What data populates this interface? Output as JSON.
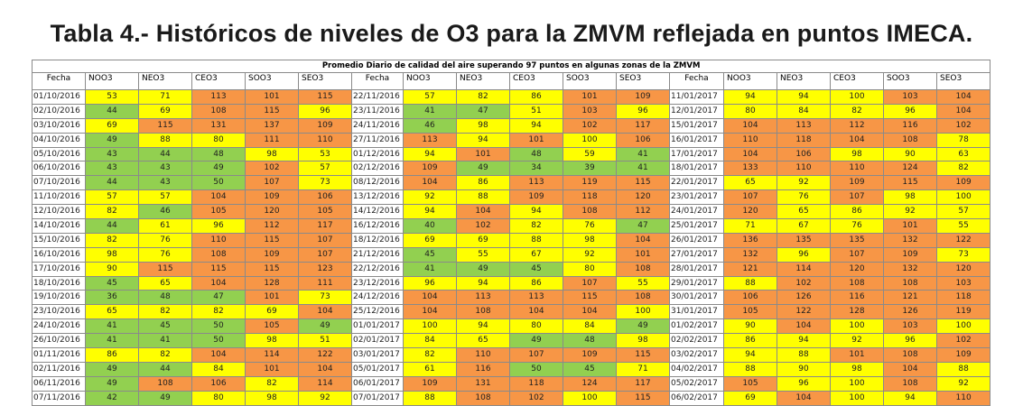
{
  "title": "Tabla 4.- Históricos de niveles de O3 para la ZMVM reflejada en puntos IMECA.",
  "table": {
    "caption": "Promedio Diario de calidad del aire superando 97 puntos en algunas zonas de la ZMVM",
    "headers": [
      "Fecha",
      "NOO3",
      "NEO3",
      "CEO3",
      "SOO3",
      "SEO3",
      "Fecha",
      "NOO3",
      "NEO3",
      "CEO3",
      "SOO3",
      "SEO3",
      "Fecha",
      "NOO3",
      "NEO3",
      "CEO3",
      "SOO3",
      "SEO3"
    ],
    "colors": {
      "green": "#92d050",
      "yellow": "#ffff00",
      "orange": "#f79646"
    },
    "rows": [
      [
        "01/10/2016",
        "53",
        "71",
        "113",
        "101",
        "115",
        "22/11/2016",
        "57",
        "82",
        "86",
        "101",
        "109",
        "11/01/2017",
        "94",
        "94",
        "100",
        "103",
        "104"
      ],
      [
        "02/10/2016",
        "44",
        "69",
        "108",
        "115",
        "96",
        "23/11/2016",
        "41",
        "47",
        "51",
        "103",
        "96",
        "12/01/2017",
        "80",
        "84",
        "82",
        "96",
        "104"
      ],
      [
        "03/10/2016",
        "69",
        "115",
        "131",
        "137",
        "109",
        "24/11/2016",
        "46",
        "98",
        "94",
        "102",
        "117",
        "15/01/2017",
        "104",
        "113",
        "112",
        "116",
        "102"
      ],
      [
        "04/10/2016",
        "49",
        "88",
        "80",
        "111",
        "110",
        "27/11/2016",
        "113",
        "94",
        "101",
        "100",
        "106",
        "16/01/2017",
        "110",
        "118",
        "104",
        "108",
        "78"
      ],
      [
        "05/10/2016",
        "43",
        "44",
        "48",
        "98",
        "53",
        "01/12/2016",
        "94",
        "101",
        "48",
        "59",
        "41",
        "17/01/2017",
        "104",
        "106",
        "98",
        "90",
        "63"
      ],
      [
        "06/10/2016",
        "43",
        "43",
        "49",
        "102",
        "57",
        "02/12/2016",
        "109",
        "49",
        "34",
        "39",
        "41",
        "18/01/2017",
        "133",
        "110",
        "110",
        "124",
        "82"
      ],
      [
        "07/10/2016",
        "44",
        "43",
        "50",
        "107",
        "73",
        "08/12/2016",
        "104",
        "86",
        "113",
        "119",
        "115",
        "22/01/2017",
        "65",
        "92",
        "109",
        "115",
        "109"
      ],
      [
        "11/10/2016",
        "57",
        "57",
        "104",
        "109",
        "106",
        "13/12/2016",
        "92",
        "88",
        "109",
        "118",
        "120",
        "23/01/2017",
        "107",
        "76",
        "107",
        "98",
        "100"
      ],
      [
        "12/10/2016",
        "82",
        "46",
        "105",
        "120",
        "105",
        "14/12/2016",
        "94",
        "104",
        "94",
        "108",
        "112",
        "24/01/2017",
        "120",
        "65",
        "86",
        "92",
        "57"
      ],
      [
        "14/10/2016",
        "44",
        "61",
        "96",
        "112",
        "117",
        "16/12/2016",
        "40",
        "102",
        "82",
        "76",
        "47",
        "25/01/2017",
        "71",
        "67",
        "76",
        "101",
        "55"
      ],
      [
        "15/10/2016",
        "82",
        "76",
        "110",
        "115",
        "107",
        "18/12/2016",
        "69",
        "69",
        "88",
        "98",
        "104",
        "26/01/2017",
        "136",
        "135",
        "135",
        "132",
        "122"
      ],
      [
        "16/10/2016",
        "98",
        "76",
        "108",
        "109",
        "107",
        "21/12/2016",
        "45",
        "55",
        "67",
        "92",
        "101",
        "27/01/2017",
        "132",
        "96",
        "107",
        "109",
        "73"
      ],
      [
        "17/10/2016",
        "90",
        "115",
        "115",
        "115",
        "123",
        "22/12/2016",
        "41",
        "49",
        "45",
        "80",
        "108",
        "28/01/2017",
        "121",
        "114",
        "120",
        "132",
        "120"
      ],
      [
        "18/10/2016",
        "45",
        "65",
        "104",
        "128",
        "111",
        "23/12/2016",
        "96",
        "94",
        "86",
        "107",
        "55",
        "29/01/2017",
        "88",
        "102",
        "108",
        "108",
        "103"
      ],
      [
        "19/10/2016",
        "36",
        "48",
        "47",
        "101",
        "73",
        "24/12/2016",
        "104",
        "113",
        "113",
        "115",
        "108",
        "30/01/2017",
        "106",
        "126",
        "116",
        "121",
        "118"
      ],
      [
        "23/10/2016",
        "65",
        "82",
        "82",
        "69",
        "104",
        "25/12/2016",
        "104",
        "108",
        "104",
        "104",
        "100",
        "31/01/2017",
        "105",
        "122",
        "128",
        "126",
        "119"
      ],
      [
        "24/10/2016",
        "41",
        "45",
        "50",
        "105",
        "49",
        "01/01/2017",
        "100",
        "94",
        "80",
        "84",
        "49",
        "01/02/2017",
        "90",
        "104",
        "100",
        "103",
        "100"
      ],
      [
        "26/10/2016",
        "41",
        "41",
        "50",
        "98",
        "51",
        "02/01/2017",
        "84",
        "65",
        "49",
        "48",
        "98",
        "02/02/2017",
        "86",
        "94",
        "92",
        "96",
        "102"
      ],
      [
        "01/11/2016",
        "86",
        "82",
        "104",
        "114",
        "122",
        "03/01/2017",
        "82",
        "110",
        "107",
        "109",
        "115",
        "03/02/2017",
        "94",
        "88",
        "101",
        "108",
        "109"
      ],
      [
        "02/11/2016",
        "49",
        "44",
        "84",
        "101",
        "104",
        "05/01/2017",
        "61",
        "116",
        "50",
        "45",
        "71",
        "04/02/2017",
        "88",
        "90",
        "98",
        "104",
        "88"
      ],
      [
        "06/11/2016",
        "49",
        "108",
        "106",
        "82",
        "114",
        "06/01/2017",
        "109",
        "131",
        "118",
        "124",
        "117",
        "05/02/2017",
        "105",
        "96",
        "100",
        "108",
        "92"
      ],
      [
        "07/11/2016",
        "42",
        "49",
        "80",
        "98",
        "92",
        "07/01/2017",
        "88",
        "108",
        "102",
        "100",
        "115",
        "06/02/2017",
        "69",
        "104",
        "100",
        "94",
        "110"
      ]
    ]
  }
}
